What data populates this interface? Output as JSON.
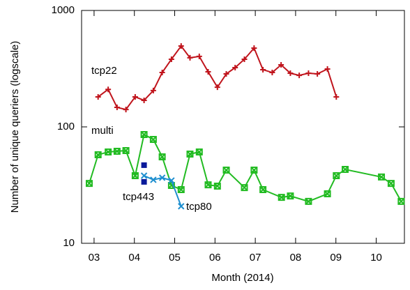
{
  "chart_data": {
    "type": "line",
    "xlabel": "Month (2014)",
    "ylabel": "Number of unique queriers (logscale)",
    "ylog": true,
    "xlim": [
      2.69,
      10.7
    ],
    "ylim": [
      10,
      1000
    ],
    "xticks": [
      {
        "value": 3,
        "label": "03"
      },
      {
        "value": 4,
        "label": "04"
      },
      {
        "value": 5,
        "label": "05"
      },
      {
        "value": 6,
        "label": "06"
      },
      {
        "value": 7,
        "label": "07"
      },
      {
        "value": 8,
        "label": "08"
      },
      {
        "value": 9,
        "label": "09"
      },
      {
        "value": 10,
        "label": "10"
      }
    ],
    "yticks": [
      10,
      100,
      1000
    ],
    "series": [
      {
        "name": "tcp22",
        "color": "#c0141c",
        "marker": "plus",
        "line": true,
        "x": [
          3.1,
          3.35,
          3.57,
          3.79,
          4.02,
          4.24,
          4.47,
          4.69,
          4.92,
          5.16,
          5.38,
          5.61,
          5.83,
          6.06,
          6.28,
          6.5,
          6.73,
          6.97,
          7.19,
          7.42,
          7.64,
          7.87,
          8.09,
          8.32,
          8.54,
          8.79,
          9.01
        ],
        "values": [
          181,
          210,
          147,
          141,
          181,
          169,
          205,
          293,
          381,
          495,
          392,
          403,
          297,
          219,
          285,
          323,
          381,
          475,
          310,
          293,
          341,
          289,
          277,
          289,
          285,
          314,
          181
        ]
      },
      {
        "name": "multi",
        "color": "#22bb22",
        "marker": "boxcross",
        "line": true,
        "x": [
          2.88,
          3.1,
          3.35,
          3.57,
          3.79,
          4.02,
          4.24,
          4.47,
          4.69,
          4.92,
          5.16,
          5.38,
          5.61,
          5.83,
          6.06,
          6.28,
          6.73,
          6.97,
          7.19,
          7.65,
          7.87,
          8.32,
          8.79,
          9.01,
          9.23,
          10.13,
          10.37,
          10.62
        ],
        "values": [
          32.7,
          57.6,
          60.9,
          61.7,
          62.6,
          38.1,
          86,
          78,
          55.3,
          31.4,
          28.9,
          58.4,
          60.9,
          31.8,
          31,
          42.5,
          30.1,
          42.5,
          28.9,
          24.8,
          25.5,
          22.9,
          26.6,
          38.1,
          43.1,
          37.1,
          32.7,
          22.9
        ]
      },
      {
        "name": "tcp80",
        "color": "#1f8fcf",
        "marker": "cross",
        "line": true,
        "x": [
          4.24,
          4.47,
          4.69,
          4.92,
          5.16
        ],
        "values": [
          38.1,
          35.1,
          36.6,
          34.6,
          20.8
        ]
      },
      {
        "name": "tcp443",
        "color": "#0a1a9a",
        "marker": "square",
        "line": false,
        "x": [
          4.24,
          4.24
        ],
        "values": [
          46.9,
          33.7
        ]
      }
    ]
  }
}
